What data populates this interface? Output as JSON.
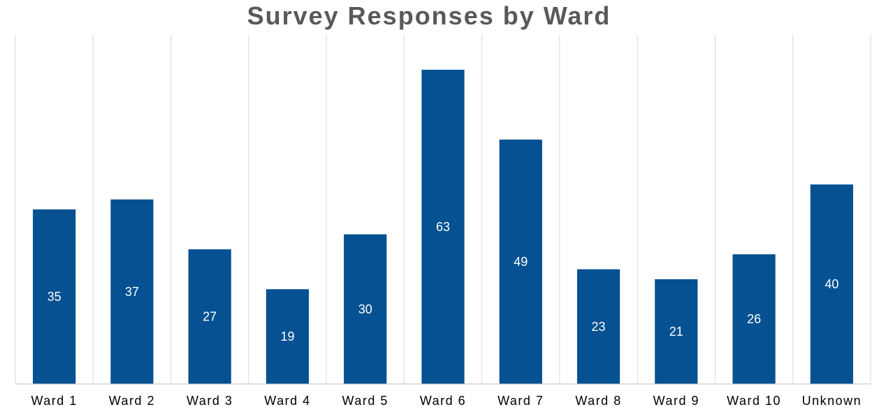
{
  "chart_data": {
    "type": "bar",
    "title": "Survey Responses by Ward",
    "xlabel": "",
    "ylabel": "",
    "categories": [
      "Ward 1",
      "Ward 2",
      "Ward 3",
      "Ward 4",
      "Ward 5",
      "Ward 6",
      "Ward 7",
      "Ward 8",
      "Ward 9",
      "Ward 10",
      "Unknown"
    ],
    "values": [
      35,
      37,
      27,
      19,
      30,
      63,
      49,
      23,
      21,
      26,
      40
    ],
    "ylim": [
      0,
      70
    ],
    "grid": "vertical",
    "legend": "none",
    "colors": {
      "bar": "#055191",
      "grid": "#d9d9d9",
      "axis": "#bfbfbf",
      "title": "#595959",
      "value_label": "#ffffff",
      "tick_label": "#000000"
    }
  }
}
